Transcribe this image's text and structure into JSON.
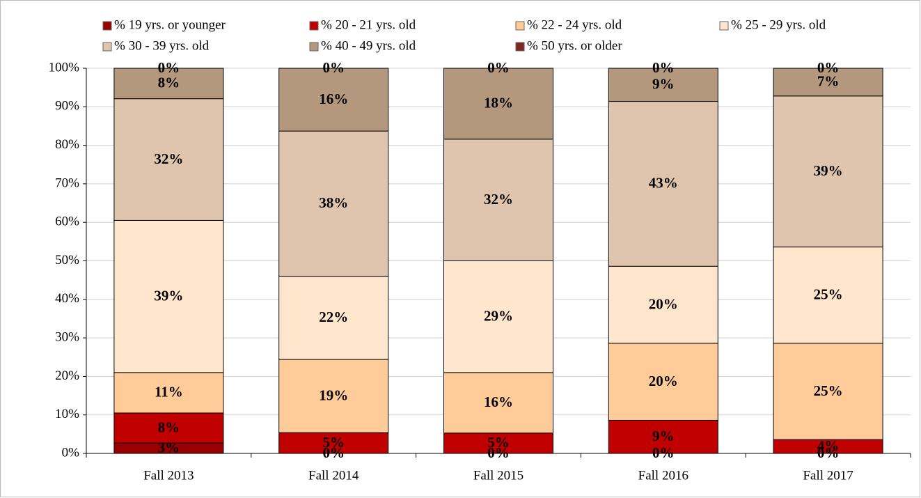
{
  "chart_data": {
    "type": "stacked_bar",
    "categories": [
      "Fall 2013",
      "Fall 2014",
      "Fall 2015",
      "Fall 2016",
      "Fall 2017"
    ],
    "series": [
      {
        "name": "% 19 yrs. or younger",
        "color": "#990000",
        "values": [
          2.7,
          0,
          0,
          0,
          0
        ],
        "value_labels": [
          "3%",
          "0%",
          "0%",
          "0%",
          "0%"
        ]
      },
      {
        "name": "% 20 - 21 yrs. old",
        "color": "#c00000",
        "values": [
          7.8,
          5.4,
          5.3,
          8.6,
          3.6
        ],
        "value_labels": [
          "8%",
          "5%",
          "5%",
          "9%",
          "4%"
        ]
      },
      {
        "name": "% 22 - 24 yrs. old",
        "color": "#ffcc99",
        "values": [
          10.5,
          19.0,
          15.7,
          20.0,
          25.0
        ],
        "value_labels": [
          "11%",
          "19%",
          "16%",
          "20%",
          "25%"
        ]
      },
      {
        "name": "% 25 - 29 yrs. old",
        "color": "#ffe6cc",
        "values": [
          39.5,
          21.6,
          29.0,
          20.0,
          25.0
        ],
        "value_labels": [
          "39%",
          "22%",
          "29%",
          "20%",
          "25%"
        ]
      },
      {
        "name": "% 30 - 39 yrs. old",
        "color": "#dfc5ad",
        "values": [
          31.6,
          37.7,
          31.6,
          42.8,
          39.2
        ],
        "value_labels": [
          "32%",
          "38%",
          "32%",
          "43%",
          "39%"
        ]
      },
      {
        "name": "% 40 - 49 yrs. old",
        "color": "#b3987d",
        "values": [
          7.9,
          16.3,
          18.4,
          8.6,
          7.2
        ],
        "value_labels": [
          "8%",
          "16%",
          "18%",
          "9%",
          "7%"
        ]
      },
      {
        "name": "% 50 yrs. or older",
        "color": "#7b2a22",
        "values": [
          0,
          0,
          0,
          0,
          0
        ],
        "value_labels": [
          "0%",
          "0%",
          "0%",
          "0%",
          "0%"
        ]
      }
    ],
    "ylim": [
      0,
      100
    ],
    "yticks": [
      {
        "value": 0,
        "label": "0%"
      },
      {
        "value": 10,
        "label": "10%"
      },
      {
        "value": 20,
        "label": "20%"
      },
      {
        "value": 30,
        "label": "30%"
      },
      {
        "value": 40,
        "label": "40%"
      },
      {
        "value": 50,
        "label": "50%"
      },
      {
        "value": 60,
        "label": "60%"
      },
      {
        "value": 70,
        "label": "70%"
      },
      {
        "value": 80,
        "label": "80%"
      },
      {
        "value": 90,
        "label": "90%"
      },
      {
        "value": 100,
        "label": "100%"
      }
    ],
    "grid": true,
    "legend": "top"
  }
}
